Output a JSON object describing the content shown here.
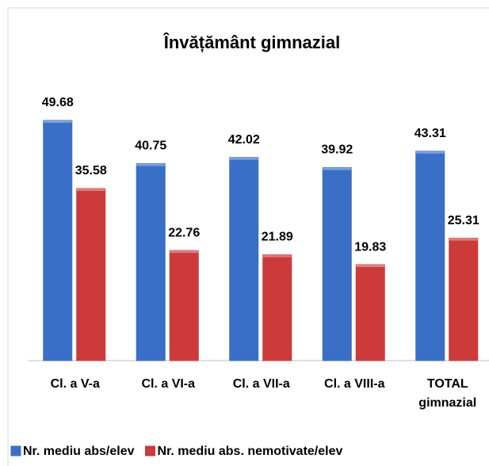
{
  "chart_data": {
    "type": "bar",
    "title": "Învățământ gimnazial",
    "categories": [
      "Cl. a V-a",
      "Cl. a VI-a",
      "Cl. a VII-a",
      "Cl. a VIII-a",
      "TOTAL\ngimnazial"
    ],
    "series": [
      {
        "name": "Nr. mediu abs/elev",
        "color": "#3a6fc8",
        "values": [
          49.68,
          40.75,
          42.02,
          39.92,
          43.31
        ]
      },
      {
        "name": "Nr. mediu abs. nemotivate/elev",
        "color": "#cc3a3a",
        "values": [
          35.58,
          22.76,
          21.89,
          19.83,
          25.31
        ]
      }
    ],
    "ylim": [
      0,
      50
    ],
    "legend": "bottom"
  }
}
